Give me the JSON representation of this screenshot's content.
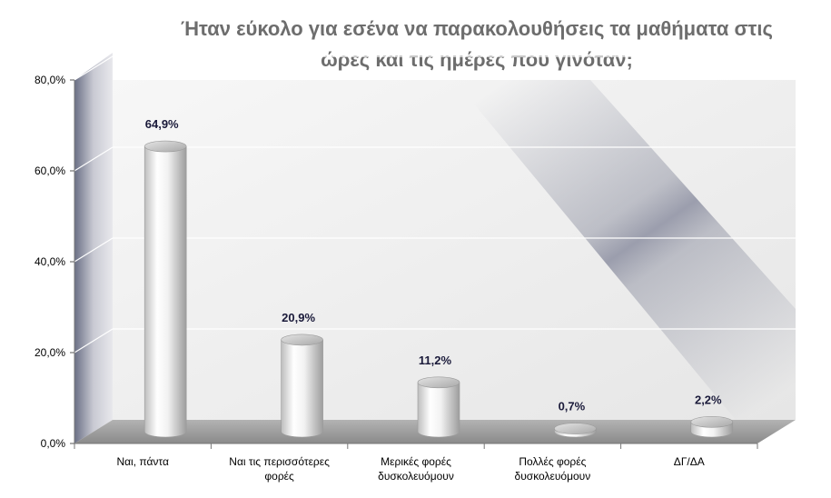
{
  "chart_data": {
    "type": "bar",
    "title_lines": [
      "Ήταν εύκολο για εσένα να παρακολουθήσεις τα μαθήματα στις",
      "ώρες και τις ημέρες που γινόταν;"
    ],
    "categories": [
      [
        "Ναι, πάντα"
      ],
      [
        "Ναι τις περισσότερες",
        "φορές"
      ],
      [
        "Μερικές φορές",
        "δυσκολευόμουν"
      ],
      [
        "Πολλές φορές",
        "δυσκολευόμουν"
      ],
      [
        "ΔΓ/ΔΑ"
      ]
    ],
    "values": [
      64.9,
      20.9,
      11.2,
      0.7,
      2.2
    ],
    "data_labels": [
      "64,9%",
      "20,9%",
      "11,2%",
      "0,7%",
      "2,2%"
    ],
    "y_ticks": [
      "0,0%",
      "20,0%",
      "40,0%",
      "60,0%",
      "80,0%"
    ],
    "ylim": [
      0,
      80
    ],
    "grid": true,
    "legend": "none",
    "bar_style": "3d-cylinder",
    "colors": {
      "title": "#6d6d6d",
      "bar_light": "#ffffff",
      "bar_dark": "#a9a9a9",
      "wall_shade": "#5a5f78",
      "floor": "#9a9a9a",
      "data_label": "#1a1a3a"
    }
  }
}
